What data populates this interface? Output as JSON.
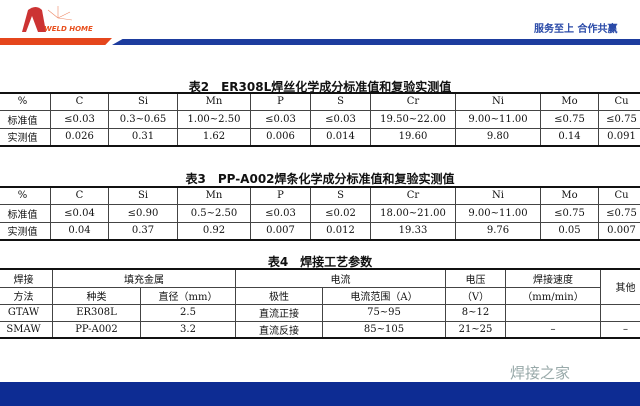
{
  "header": {
    "logo_text": "WELD HOME",
    "slogan": "服务至上 合作共赢"
  },
  "table2": {
    "title": "表2　ER308L焊丝化学成分标准值和复验实测值",
    "headers": [
      "%",
      "C",
      "Si",
      "Mn",
      "P",
      "S",
      "Cr",
      "Ni",
      "Mo",
      "Cu"
    ],
    "rows": [
      [
        "标准值",
        "≤0.03",
        "0.3~0.65",
        "1.00~2.50",
        "≤0.03",
        "≤0.03",
        "19.50~22.00",
        "9.00~11.00",
        "≤0.75",
        "≤0.75"
      ],
      [
        "实测值",
        "0.026",
        "0.31",
        "1.62",
        "0.006",
        "0.014",
        "19.60",
        "9.80",
        "0.14",
        "0.091"
      ]
    ]
  },
  "table3": {
    "title": "表3　PP-A002焊条化学成分标准值和复验实测值",
    "headers": [
      "%",
      "C",
      "Si",
      "Mn",
      "P",
      "S",
      "Cr",
      "Ni",
      "Mo",
      "Cu"
    ],
    "rows": [
      [
        "标准值",
        "≤0.04",
        "≤0.90",
        "0.5~2.50",
        "≤0.03",
        "≤0.02",
        "18.00~21.00",
        "9.00~11.00",
        "≤0.75",
        "≤0.75"
      ],
      [
        "实测值",
        "0.04",
        "0.37",
        "0.92",
        "0.007",
        "0.012",
        "19.33",
        "9.76",
        "0.05",
        "0.007"
      ]
    ]
  },
  "table4": {
    "title": "表4　焊接工艺参数",
    "h1": {
      "method": "焊接",
      "filler": "填充金属",
      "current": "电流",
      "voltage": "电压",
      "speed": "焊接速度",
      "other": "其他"
    },
    "h2": {
      "method": "方法",
      "type": "种类",
      "diameter": "直径（mm）",
      "polarity": "极性",
      "range": "电流范围（A）",
      "voltage": "（V）",
      "speed": "（mm/min）"
    },
    "rows": [
      [
        "GTAW",
        "ER308L",
        "2.5",
        "直流正接",
        "75~95",
        "8~12",
        "",
        ""
      ],
      [
        "SMAW",
        "PP-A002",
        "3.2",
        "直流反接",
        "85~105",
        "21~25",
        "–",
        "–"
      ]
    ]
  },
  "watermark": "焊接之家"
}
